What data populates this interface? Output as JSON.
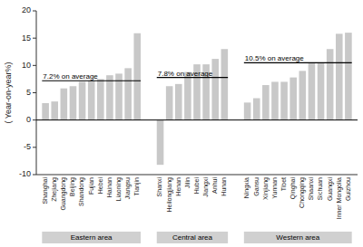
{
  "chart_data": {
    "type": "bar",
    "ylabel": "( Year-on-year%)",
    "color": "#c8c8c8",
    "ylim": [
      -10,
      20
    ],
    "yticks": [
      -10,
      -5,
      0,
      5,
      10,
      15,
      20
    ],
    "groups": [
      {
        "name": "Eastern area",
        "categories": [
          "Shanghai",
          "Zhejiang",
          "Guangdong",
          "Beijing",
          "Shandong",
          "Fujian",
          "Hebei",
          "Hainan",
          "Liaoning",
          "Jiangsu",
          "Tianjin"
        ],
        "values": [
          3.1,
          3.4,
          5.8,
          6.2,
          7.0,
          7.2,
          7.5,
          8.2,
          8.5,
          9.5,
          15.9
        ],
        "average": 7.2,
        "average_label": "7.2% on average"
      },
      {
        "name": "Central area",
        "categories": [
          "Shanxi",
          "Heilongjiang",
          "Henan",
          "Jilin",
          "Hubei",
          "Jiangxi",
          "Anhui",
          "Hunan"
        ],
        "values": [
          -8.2,
          6.2,
          6.6,
          8.8,
          10.2,
          10.2,
          11.2,
          13.0
        ],
        "average": 7.8,
        "average_label": "7.8% on average"
      },
      {
        "name": "Western area",
        "categories": [
          "Ningxia",
          "Gansu",
          "Xinjiang",
          "Yunnan",
          "Tibet",
          "Qinghai",
          "Chongqing",
          "Shaanxi",
          "Sichuan",
          "Guangxi",
          "Inner Mongolia",
          "Guizhou"
        ],
        "values": [
          3.2,
          4.0,
          6.4,
          7.0,
          7.0,
          7.8,
          9.0,
          10.4,
          10.5,
          13.0,
          15.8,
          16.0
        ],
        "average": 10.5,
        "average_label": "10.5% on average"
      }
    ]
  }
}
